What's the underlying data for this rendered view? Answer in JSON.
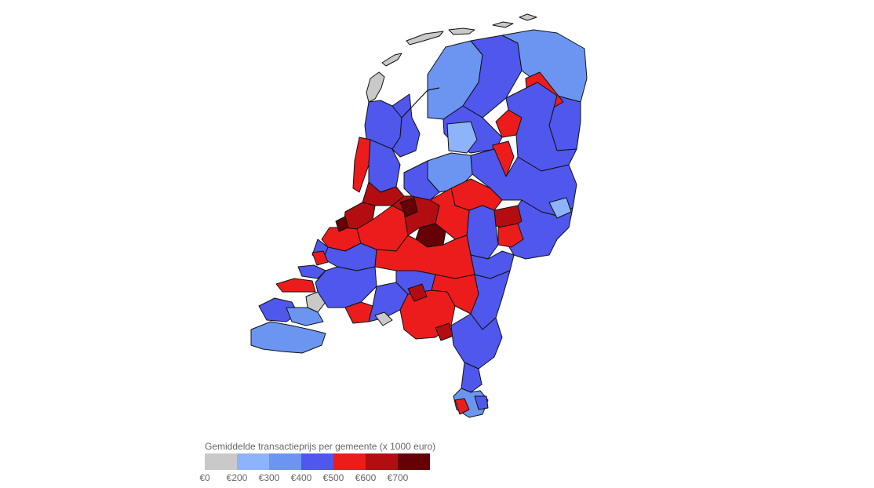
{
  "colors": {
    "c0": "#c9c9c9",
    "c1": "#8db3fb",
    "c2": "#6c95f2",
    "c3": "#4f57ec",
    "c4": "#ec1c1c",
    "c5": "#b30d12",
    "c6": "#650006"
  },
  "legend": {
    "title": "Gemiddelde transactieprijs per gemeente (x 1000 euro)",
    "swatches": [
      "#c9c9c9",
      "#8db3fb",
      "#6c95f2",
      "#4f57ec",
      "#ec1c1c",
      "#b30d12",
      "#650006"
    ],
    "labels": [
      "€0",
      "€200",
      "€300",
      "€400",
      "€500",
      "€600",
      "€700"
    ]
  }
}
